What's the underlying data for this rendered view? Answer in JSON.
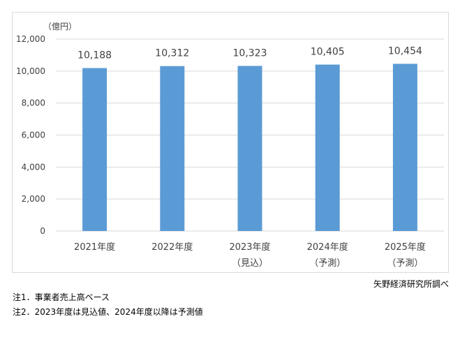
{
  "chart_data": {
    "type": "bar",
    "unit_label": "（億円）",
    "categories": [
      "2021年度",
      "2022年度",
      "2023年度",
      "2024年度",
      "2025年度"
    ],
    "category_sublabels": [
      "",
      "",
      "（見込）",
      "（予測）",
      "（予測）"
    ],
    "values": [
      10188,
      10312,
      10323,
      10405,
      10454
    ],
    "value_labels": [
      "10,188",
      "10,312",
      "10,323",
      "10,405",
      "10,454"
    ],
    "ylim": [
      0,
      12000
    ],
    "yticks": [
      0,
      2000,
      4000,
      6000,
      8000,
      10000,
      12000
    ],
    "ytick_labels": [
      "0",
      "2,000",
      "4,000",
      "6,000",
      "8,000",
      "10,000",
      "12,000"
    ],
    "grid": true,
    "bar_color": "#5b9bd5",
    "grid_color": "#d9d9d9"
  },
  "source": "矢野経済研究所調べ",
  "notes": [
    "注1．事業者売上高ベース",
    "注2．2023年度は見込値、2024年度以降は予測値"
  ]
}
